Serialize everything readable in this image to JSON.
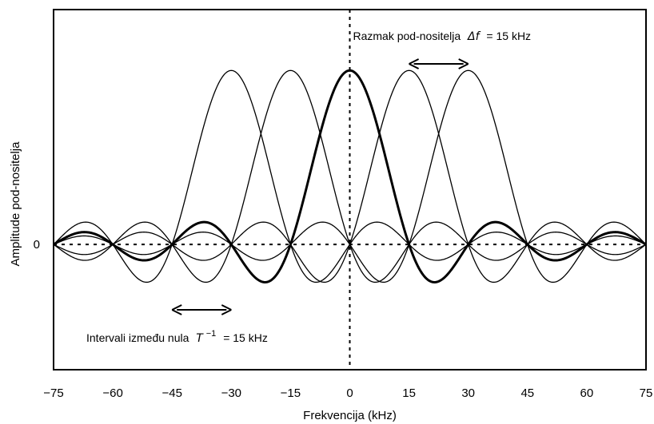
{
  "chart_data": {
    "type": "line",
    "xlabel": "Frekvencija (kHz)",
    "ylabel": "Amplitude pod-nositelja",
    "x_ticks": [
      -75,
      -60,
      -45,
      -30,
      -15,
      0,
      15,
      30,
      45,
      60,
      75
    ],
    "xlim": [
      -75,
      75
    ],
    "ylim": [
      -0.72,
      1.35
    ],
    "y_ticks": [
      {
        "value": 0,
        "label": "0"
      }
    ],
    "subcarrier_spacing_khz": 15,
    "null_interval_khz": 15,
    "series": [
      {
        "center_khz": -30,
        "peak": 1.0,
        "highlighted": false
      },
      {
        "center_khz": -15,
        "peak": 1.0,
        "highlighted": false
      },
      {
        "center_khz": 0,
        "peak": 1.0,
        "highlighted": true
      },
      {
        "center_khz": 15,
        "peak": 1.0,
        "highlighted": false
      },
      {
        "center_khz": 30,
        "peak": 1.0,
        "highlighted": false
      }
    ],
    "annotations": [
      {
        "id": "spacing",
        "text": "Razmak pod-nositelja",
        "symbol": "Δf",
        "value": "= 15 kHz",
        "arrow_khz": [
          15,
          30
        ]
      },
      {
        "id": "nulls",
        "text": "Intervali između nula",
        "symbol": "T",
        "exponent": "−1",
        "value": "= 15 kHz",
        "arrow_khz": [
          -45,
          -30
        ]
      }
    ]
  }
}
